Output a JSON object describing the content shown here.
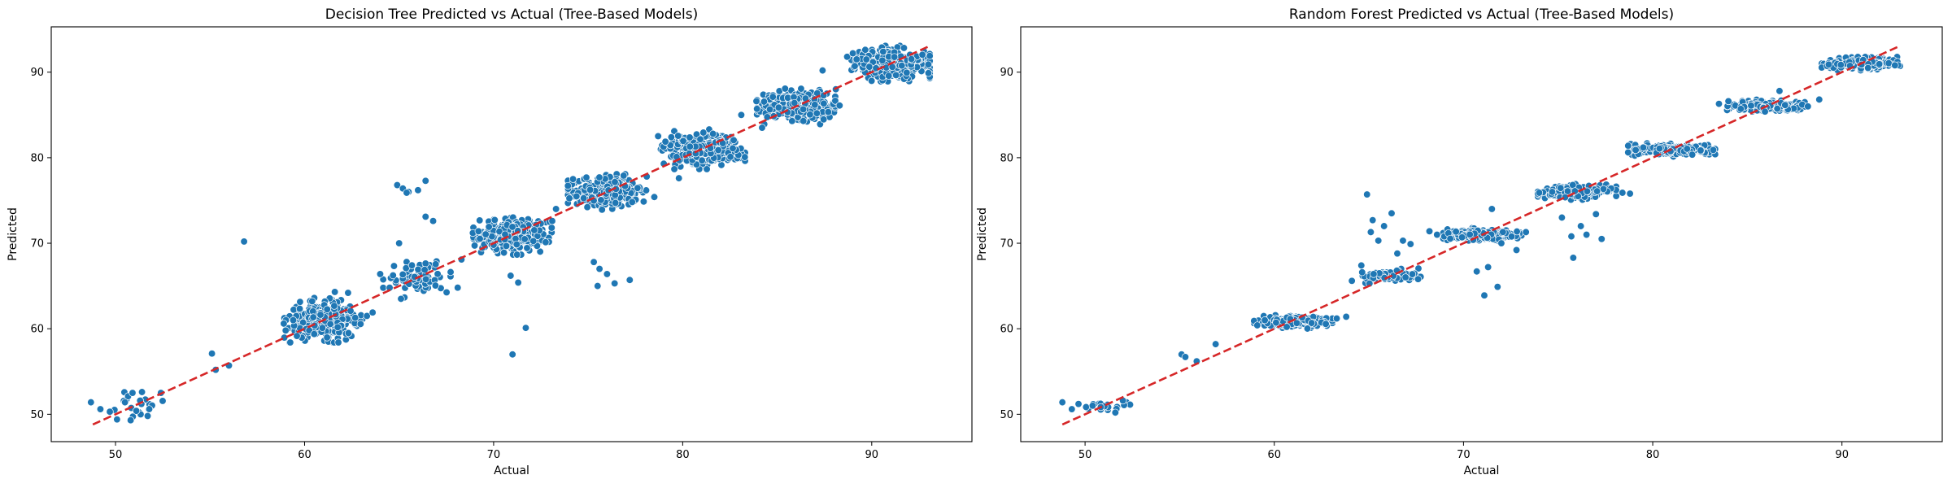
{
  "colors": {
    "point_fill": "#1f77b4",
    "point_edge": "#ffffff",
    "reference_line": "#d62728",
    "axes": "#000000"
  },
  "chart_data": [
    {
      "type": "scatter",
      "title": "Decision Tree Predicted vs Actual (Tree-Based Models)",
      "xlabel": "Actual",
      "ylabel": "Predicted",
      "xlim": [
        46.6,
        95.3
      ],
      "ylim": [
        46.8,
        95.3
      ],
      "xticks": [
        50,
        60,
        70,
        80,
        90
      ],
      "yticks": [
        50,
        60,
        70,
        80,
        90
      ],
      "grid": false,
      "legend": "none",
      "reference_line": {
        "style": "dashed",
        "from": [
          48.8,
          48.8
        ],
        "to": [
          93.0,
          93.0
        ]
      },
      "clusters": [
        {
          "cx": 51.0,
          "cy": 51.0,
          "sx": 0.8,
          "sy": 0.9,
          "n": 20
        },
        {
          "cx": 61.0,
          "cy": 61.0,
          "sx": 0.9,
          "sy": 1.0,
          "n": 300
        },
        {
          "cx": 66.0,
          "cy": 66.0,
          "sx": 0.8,
          "sy": 0.9,
          "n": 70
        },
        {
          "cx": 71.0,
          "cy": 71.0,
          "sx": 0.9,
          "sy": 0.9,
          "n": 360
        },
        {
          "cx": 76.0,
          "cy": 76.0,
          "sx": 0.9,
          "sy": 0.8,
          "n": 300
        },
        {
          "cx": 81.0,
          "cy": 81.0,
          "sx": 1.0,
          "sy": 0.9,
          "n": 380
        },
        {
          "cx": 86.0,
          "cy": 86.0,
          "sx": 0.9,
          "sy": 0.8,
          "n": 330
        },
        {
          "cx": 91.0,
          "cy": 91.0,
          "sx": 0.9,
          "sy": 0.8,
          "n": 380
        }
      ],
      "points": [
        [
          48.7,
          51.4
        ],
        [
          49.2,
          50.6
        ],
        [
          49.7,
          50.3
        ],
        [
          50.5,
          51.4
        ],
        [
          50.9,
          52.5
        ],
        [
          51.4,
          52.6
        ],
        [
          51.7,
          49.8
        ],
        [
          50.8,
          49.3
        ],
        [
          52.4,
          52.5
        ],
        [
          51.3,
          51.6
        ],
        [
          51.1,
          50.4
        ],
        [
          55.1,
          57.1
        ],
        [
          55.3,
          55.2
        ],
        [
          56.0,
          55.7
        ],
        [
          56.8,
          70.2
        ],
        [
          58.9,
          60.6
        ],
        [
          59.0,
          59.8
        ],
        [
          59.4,
          61.0
        ],
        [
          63.3,
          61.5
        ],
        [
          63.6,
          61.9
        ],
        [
          62.3,
          64.2
        ],
        [
          61.6,
          64.3
        ],
        [
          64.0,
          66.4
        ],
        [
          64.5,
          64.8
        ],
        [
          65.1,
          63.5
        ],
        [
          65.0,
          70.0
        ],
        [
          64.9,
          76.8
        ],
        [
          65.2,
          76.4
        ],
        [
          65.5,
          76.0
        ],
        [
          65.4,
          75.9
        ],
        [
          66.4,
          77.3
        ],
        [
          66.0,
          76.2
        ],
        [
          66.4,
          73.1
        ],
        [
          66.8,
          72.6
        ],
        [
          68.1,
          64.8
        ],
        [
          68.3,
          68.1
        ],
        [
          68.9,
          71.2
        ],
        [
          69.2,
          71.4
        ],
        [
          70.0,
          69.8
        ],
        [
          70.9,
          66.2
        ],
        [
          71.3,
          65.4
        ],
        [
          71.0,
          57.0
        ],
        [
          71.7,
          60.1
        ],
        [
          73.3,
          74.0
        ],
        [
          73.1,
          72.6
        ],
        [
          74.2,
          77.5
        ],
        [
          75.3,
          67.8
        ],
        [
          75.6,
          67.0
        ],
        [
          75.5,
          65.0
        ],
        [
          76.0,
          66.4
        ],
        [
          76.4,
          65.3
        ],
        [
          77.2,
          65.7
        ],
        [
          78.1,
          77.8
        ],
        [
          78.5,
          75.4
        ],
        [
          79.0,
          79.3
        ],
        [
          79.4,
          82.4
        ],
        [
          79.8,
          77.6
        ],
        [
          83.1,
          85.0
        ],
        [
          83.9,
          86.6
        ],
        [
          84.2,
          83.5
        ],
        [
          87.4,
          90.2
        ],
        [
          88.1,
          88.0
        ],
        [
          88.3,
          86.1
        ],
        [
          88.7,
          91.8
        ],
        [
          89.0,
          92.2
        ],
        [
          89.2,
          91.5
        ],
        [
          93.0,
          89.9
        ]
      ]
    },
    {
      "type": "scatter",
      "title": "Random Forest Predicted vs Actual (Tree-Based Models)",
      "xlabel": "Actual",
      "ylabel": "Predicted",
      "xlim": [
        46.6,
        95.3
      ],
      "ylim": [
        46.8,
        95.3
      ],
      "xticks": [
        50,
        60,
        70,
        80,
        90
      ],
      "yticks": [
        50,
        60,
        70,
        80,
        90
      ],
      "grid": false,
      "legend": "none",
      "reference_line": {
        "style": "dashed",
        "from": [
          48.8,
          48.8
        ],
        "to": [
          93.0,
          93.0
        ]
      },
      "clusters": [
        {
          "cx": 51.0,
          "cy": 51.0,
          "sx": 0.6,
          "sy": 0.25,
          "n": 20
        },
        {
          "cx": 61.0,
          "cy": 60.8,
          "sx": 0.9,
          "sy": 0.3,
          "n": 220
        },
        {
          "cx": 66.0,
          "cy": 66.2,
          "sx": 0.8,
          "sy": 0.35,
          "n": 90
        },
        {
          "cx": 71.0,
          "cy": 71.0,
          "sx": 0.9,
          "sy": 0.3,
          "n": 240
        },
        {
          "cx": 76.0,
          "cy": 76.0,
          "sx": 0.9,
          "sy": 0.35,
          "n": 220
        },
        {
          "cx": 81.0,
          "cy": 80.9,
          "sx": 1.0,
          "sy": 0.3,
          "n": 260
        },
        {
          "cx": 86.0,
          "cy": 86.0,
          "sx": 0.9,
          "sy": 0.3,
          "n": 220
        },
        {
          "cx": 91.0,
          "cy": 91.0,
          "sx": 0.9,
          "sy": 0.3,
          "n": 260
        }
      ],
      "points": [
        [
          48.8,
          51.4
        ],
        [
          49.3,
          50.6
        ],
        [
          50.4,
          51.0
        ],
        [
          51.6,
          50.2
        ],
        [
          52.0,
          51.6
        ],
        [
          55.1,
          57.0
        ],
        [
          55.3,
          56.7
        ],
        [
          55.9,
          56.2
        ],
        [
          56.9,
          58.2
        ],
        [
          59.1,
          60.4
        ],
        [
          59.5,
          61.0
        ],
        [
          63.3,
          61.2
        ],
        [
          63.8,
          61.4
        ],
        [
          64.1,
          65.6
        ],
        [
          64.6,
          67.4
        ],
        [
          64.9,
          75.7
        ],
        [
          65.1,
          71.3
        ],
        [
          65.2,
          72.7
        ],
        [
          65.5,
          70.3
        ],
        [
          65.8,
          72.0
        ],
        [
          66.2,
          73.5
        ],
        [
          66.5,
          68.8
        ],
        [
          66.8,
          70.3
        ],
        [
          67.2,
          69.9
        ],
        [
          67.6,
          65.8
        ],
        [
          68.2,
          71.4
        ],
        [
          68.6,
          71.0
        ],
        [
          70.7,
          66.7
        ],
        [
          71.1,
          63.9
        ],
        [
          71.3,
          67.2
        ],
        [
          71.8,
          64.9
        ],
        [
          71.5,
          74.0
        ],
        [
          72.0,
          70.0
        ],
        [
          73.3,
          71.3
        ],
        [
          72.8,
          69.2
        ],
        [
          74.0,
          75.9
        ],
        [
          75.2,
          73.0
        ],
        [
          75.7,
          70.8
        ],
        [
          75.8,
          68.3
        ],
        [
          76.2,
          72.0
        ],
        [
          76.5,
          71.0
        ],
        [
          77.0,
          73.4
        ],
        [
          77.3,
          70.5
        ],
        [
          78.4,
          75.9
        ],
        [
          78.8,
          75.8
        ],
        [
          79.1,
          80.9
        ],
        [
          79.5,
          81.2
        ],
        [
          83.2,
          80.9
        ],
        [
          83.5,
          86.3
        ],
        [
          84.0,
          86.6
        ],
        [
          86.7,
          87.8
        ],
        [
          87.9,
          86.2
        ],
        [
          88.2,
          86.0
        ],
        [
          88.8,
          86.8
        ],
        [
          89.3,
          90.9
        ],
        [
          92.8,
          90.8
        ]
      ]
    }
  ]
}
